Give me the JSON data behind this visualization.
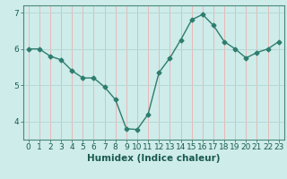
{
  "x": [
    0,
    1,
    2,
    3,
    4,
    5,
    6,
    7,
    8,
    9,
    10,
    11,
    12,
    13,
    14,
    15,
    16,
    17,
    18,
    19,
    20,
    21,
    22,
    23
  ],
  "y": [
    6.0,
    6.0,
    5.8,
    5.7,
    5.4,
    5.2,
    5.2,
    4.95,
    4.6,
    3.8,
    3.78,
    4.2,
    5.35,
    5.75,
    6.25,
    6.8,
    6.95,
    6.65,
    6.2,
    6.0,
    5.75,
    5.9,
    6.0,
    6.2
  ],
  "line_color": "#2e7d6e",
  "marker": "D",
  "marker_size": 2.5,
  "bg_color": "#ceecea",
  "grid_color_h": "#b8d8d5",
  "grid_color_v": "#e8b8b8",
  "xlabel": "Humidex (Indice chaleur)",
  "ylim": [
    3.5,
    7.2
  ],
  "xlim": [
    -0.5,
    23.5
  ],
  "yticks": [
    4,
    5,
    6,
    7
  ],
  "xticks": [
    0,
    1,
    2,
    3,
    4,
    5,
    6,
    7,
    8,
    9,
    10,
    11,
    12,
    13,
    14,
    15,
    16,
    17,
    18,
    19,
    20,
    21,
    22,
    23
  ],
  "tick_fontsize": 6.5,
  "xlabel_fontsize": 7.5,
  "line_width": 1.0
}
